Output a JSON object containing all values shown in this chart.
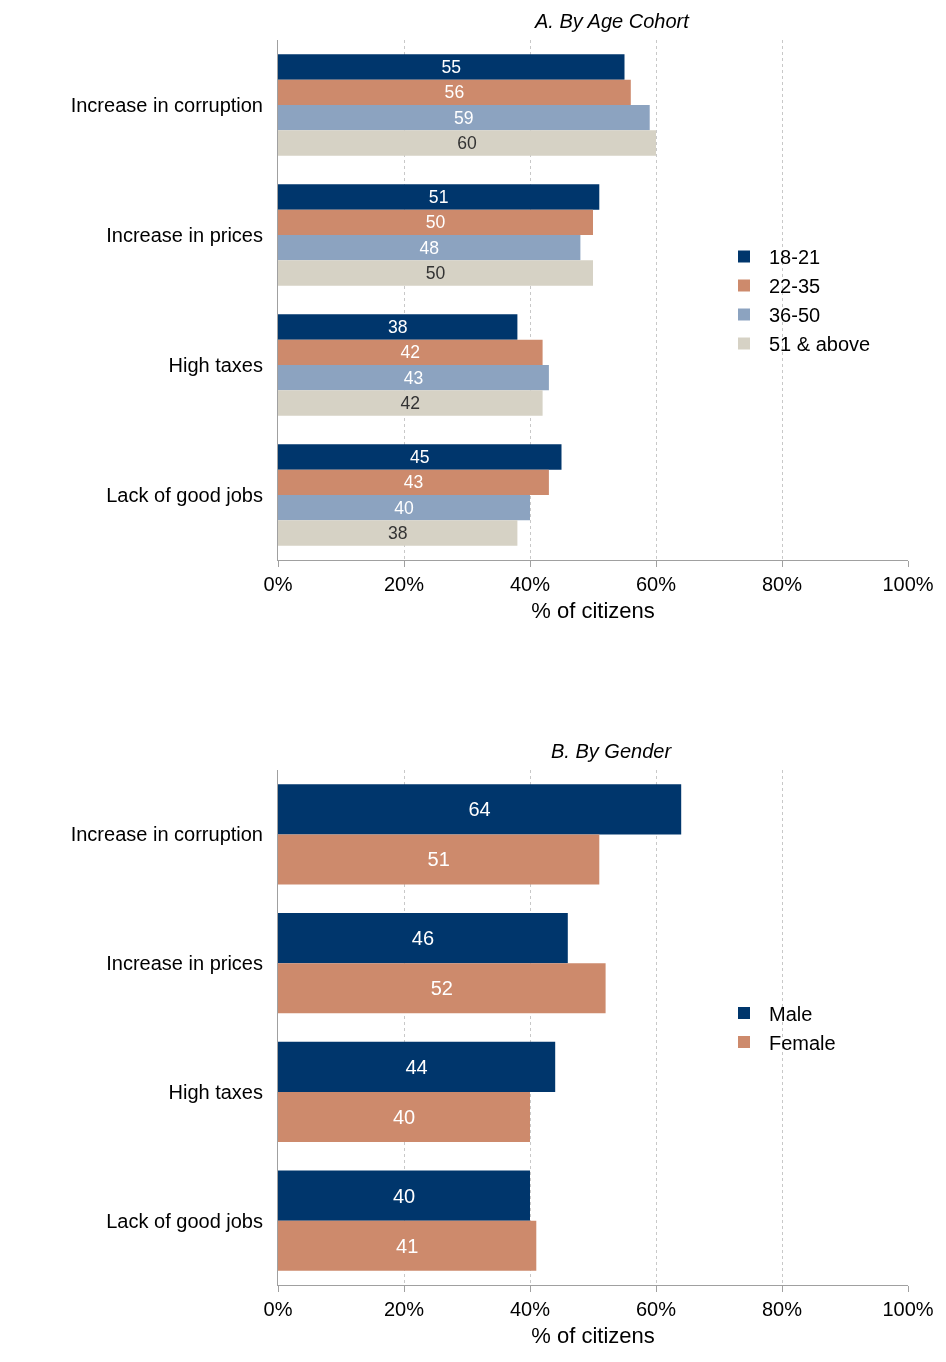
{
  "chart_data": [
    {
      "type": "bar",
      "orientation": "horizontal",
      "title": "A. By Age Cohort",
      "xlabel": "% of citizens",
      "categories": [
        "Increase in corruption",
        "Increase in prices",
        "High taxes",
        "Lack of good jobs"
      ],
      "series": [
        {
          "name": "18-21",
          "color": "#00366c",
          "values": [
            55,
            51,
            38,
            45
          ]
        },
        {
          "name": "22-35",
          "color": "#cd8a6c",
          "values": [
            56,
            50,
            42,
            43
          ]
        },
        {
          "name": "36-50",
          "color": "#8ca3c0",
          "values": [
            59,
            48,
            43,
            40
          ]
        },
        {
          "name": "51 & above",
          "color": "#d6d2c5",
          "values": [
            60,
            50,
            42,
            38
          ]
        }
      ],
      "xlim": [
        0,
        100
      ],
      "xticks": [
        {
          "value": 0,
          "label": "0%"
        },
        {
          "value": 20,
          "label": "20%"
        },
        {
          "value": 40,
          "label": "40%"
        },
        {
          "value": 60,
          "label": "60%"
        },
        {
          "value": 80,
          "label": "80%"
        },
        {
          "value": 100,
          "label": "100%"
        }
      ],
      "grid": "x",
      "legend": "right",
      "data_labels": true
    },
    {
      "type": "bar",
      "orientation": "horizontal",
      "title": "B. By Gender",
      "xlabel": "% of citizens",
      "categories": [
        "Increase in corruption",
        "Increase in prices",
        "High taxes",
        "Lack of good jobs"
      ],
      "series": [
        {
          "name": "Male",
          "color": "#00366c",
          "values": [
            64,
            46,
            44,
            40
          ]
        },
        {
          "name": "Female",
          "color": "#cd8a6c",
          "values": [
            51,
            52,
            40,
            41
          ]
        }
      ],
      "xlim": [
        0,
        100
      ],
      "xticks": [
        {
          "value": 0,
          "label": "0%"
        },
        {
          "value": 20,
          "label": "20%"
        },
        {
          "value": 40,
          "label": "40%"
        },
        {
          "value": 60,
          "label": "60%"
        },
        {
          "value": 80,
          "label": "80%"
        },
        {
          "value": 100,
          "label": "100%"
        }
      ],
      "grid": "x",
      "legend": "right",
      "data_labels": true
    }
  ]
}
